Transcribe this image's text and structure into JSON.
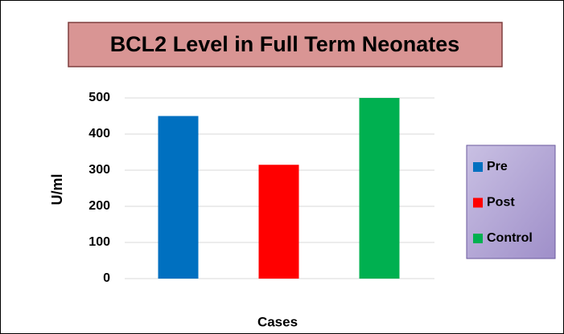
{
  "chart_data": {
    "type": "bar",
    "title": "BCL2 Level in Full Term Neonates",
    "categories": [
      null
    ],
    "series": [
      {
        "name": "Pre",
        "color": "#0070c0",
        "values": [
          450
        ]
      },
      {
        "name": "Post",
        "color": "#ff0000",
        "values": [
          315
        ]
      },
      {
        "name": "Control",
        "color": "#00b050",
        "values": [
          500
        ]
      }
    ],
    "ylabel": "U/ml",
    "xlabel": "Cases",
    "ylim": [
      0,
      500
    ],
    "yticks": [
      0,
      100,
      200,
      300,
      400,
      500
    ],
    "grid": true,
    "legend": "right"
  }
}
